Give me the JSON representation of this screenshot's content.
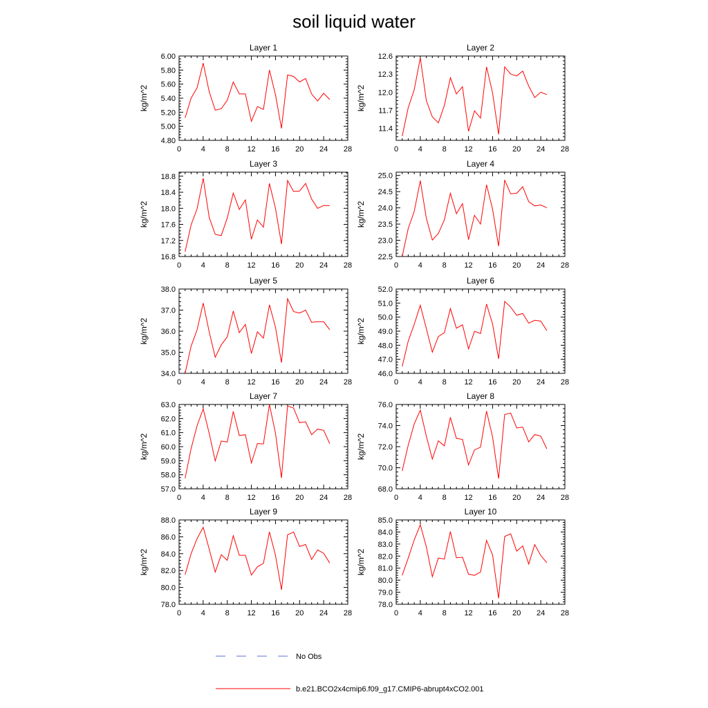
{
  "title": "soil liquid water",
  "legend": {
    "entries": [
      {
        "label": "No Obs",
        "color": "#5b6fd6",
        "dash": true
      },
      {
        "label": "b.e21.BCO2x4cmip6.f09_g17.CMIP6-abrupt4xCO2.001",
        "color": "#ff0000",
        "dash": false
      }
    ]
  },
  "colors": {
    "series": "#ff0000",
    "axis": "#000000"
  },
  "chart_data": [
    {
      "type": "line",
      "title": "Layer 1",
      "ylabel": "kg/m^2",
      "xlim": [
        0,
        28
      ],
      "ylim": [
        4.8,
        6.0
      ],
      "xticks": [
        0,
        4,
        8,
        12,
        16,
        20,
        24,
        28
      ],
      "xtick_labels": [
        "0",
        "4",
        "8",
        "12",
        "16",
        "20",
        "24",
        "28"
      ],
      "yticks": [
        4.8,
        5.0,
        5.2,
        5.4,
        5.6,
        5.8,
        6.0
      ],
      "ytick_labels": [
        "4.80",
        "5.00",
        "5.20",
        "5.40",
        "5.60",
        "5.80",
        "6.00"
      ],
      "x": [
        1,
        2,
        3,
        4,
        5,
        6,
        7,
        8,
        9,
        10,
        11,
        12,
        13,
        14,
        15,
        16,
        17,
        18,
        19,
        20,
        21,
        22,
        23,
        24,
        25
      ],
      "series": [
        {
          "values": [
            5.12,
            5.4,
            5.55,
            5.9,
            5.49,
            5.23,
            5.25,
            5.37,
            5.63,
            5.46,
            5.46,
            5.07,
            5.28,
            5.24,
            5.8,
            5.45,
            4.97,
            5.73,
            5.71,
            5.63,
            5.68,
            5.46,
            5.36,
            5.47,
            5.38
          ]
        }
      ]
    },
    {
      "type": "line",
      "title": "Layer 2",
      "ylabel": "kg/m^2",
      "xlim": [
        0,
        28
      ],
      "ylim": [
        11.2,
        12.6
      ],
      "xticks": [
        0,
        4,
        8,
        12,
        16,
        20,
        24,
        28
      ],
      "xtick_labels": [
        "0",
        "4",
        "8",
        "12",
        "16",
        "20",
        "24",
        "28"
      ],
      "yticks": [
        11.4,
        11.7,
        12.0,
        12.3,
        12.6
      ],
      "ytick_labels": [
        "11.4",
        "11.7",
        "12.0",
        "12.3",
        "12.6"
      ],
      "x": [
        1,
        2,
        3,
        4,
        5,
        6,
        7,
        8,
        9,
        10,
        11,
        12,
        13,
        14,
        15,
        16,
        17,
        18,
        19,
        20,
        21,
        22,
        23,
        24,
        25
      ],
      "series": [
        {
          "values": [
            11.27,
            11.74,
            12.04,
            12.57,
            11.86,
            11.59,
            11.49,
            11.78,
            12.24,
            11.97,
            12.09,
            11.35,
            11.69,
            11.57,
            12.42,
            11.99,
            11.3,
            12.42,
            12.3,
            12.27,
            12.35,
            12.1,
            11.91,
            12.0,
            11.96
          ]
        }
      ]
    },
    {
      "type": "line",
      "title": "Layer 3",
      "ylabel": "kg/m^2",
      "xlim": [
        0,
        28
      ],
      "ylim": [
        16.8,
        18.9
      ],
      "xticks": [
        0,
        4,
        8,
        12,
        16,
        20,
        24,
        28
      ],
      "xtick_labels": [
        "0",
        "4",
        "8",
        "12",
        "16",
        "20",
        "24",
        "28"
      ],
      "yticks": [
        16.8,
        17.2,
        17.6,
        18.0,
        18.4,
        18.8
      ],
      "ytick_labels": [
        "16.8",
        "17.2",
        "17.6",
        "18.0",
        "18.4",
        "18.8"
      ],
      "x": [
        1,
        2,
        3,
        4,
        5,
        6,
        7,
        8,
        9,
        10,
        11,
        12,
        13,
        14,
        15,
        16,
        17,
        18,
        19,
        20,
        21,
        22,
        23,
        24,
        25
      ],
      "series": [
        {
          "values": [
            16.92,
            17.59,
            17.99,
            18.75,
            17.77,
            17.35,
            17.32,
            17.76,
            18.38,
            17.97,
            18.21,
            17.23,
            17.71,
            17.53,
            18.62,
            18.0,
            17.11,
            18.69,
            18.42,
            18.43,
            18.62,
            18.23,
            18.0,
            18.07,
            18.07
          ]
        }
      ]
    },
    {
      "type": "line",
      "title": "Layer 4",
      "ylabel": "kg/m^2",
      "xlim": [
        0,
        28
      ],
      "ylim": [
        22.5,
        25.1
      ],
      "xticks": [
        0,
        4,
        8,
        12,
        16,
        20,
        24,
        28
      ],
      "xtick_labels": [
        "0",
        "4",
        "8",
        "12",
        "16",
        "20",
        "24",
        "28"
      ],
      "yticks": [
        22.5,
        23.0,
        23.5,
        24.0,
        24.5,
        25.0
      ],
      "ytick_labels": [
        "22.5",
        "23.0",
        "23.5",
        "24.0",
        "24.5",
        "25.0"
      ],
      "x": [
        1,
        2,
        3,
        4,
        5,
        6,
        7,
        8,
        9,
        10,
        11,
        12,
        13,
        14,
        15,
        16,
        17,
        18,
        19,
        20,
        21,
        22,
        23,
        24,
        25
      ],
      "series": [
        {
          "values": [
            22.5,
            23.36,
            23.89,
            24.84,
            23.68,
            23.01,
            23.21,
            23.63,
            24.45,
            23.82,
            24.13,
            23.02,
            23.77,
            23.5,
            24.71,
            23.96,
            22.82,
            24.86,
            24.43,
            24.45,
            24.65,
            24.19,
            24.06,
            24.09,
            24.0
          ]
        }
      ]
    },
    {
      "type": "line",
      "title": "Layer 5",
      "ylabel": "kg/m^2",
      "xlim": [
        0,
        28
      ],
      "ylim": [
        34.0,
        38.0
      ],
      "xticks": [
        0,
        4,
        8,
        12,
        16,
        20,
        24,
        28
      ],
      "xtick_labels": [
        "0",
        "4",
        "8",
        "12",
        "16",
        "20",
        "24",
        "28"
      ],
      "yticks": [
        34.0,
        35.0,
        36.0,
        37.0,
        38.0
      ],
      "ytick_labels": [
        "34.0",
        "35.0",
        "36.0",
        "37.0",
        "38.0"
      ],
      "x": [
        1,
        2,
        3,
        4,
        5,
        6,
        7,
        8,
        9,
        10,
        11,
        12,
        13,
        14,
        15,
        16,
        17,
        18,
        19,
        20,
        21,
        22,
        23,
        24,
        25
      ],
      "series": [
        {
          "values": [
            34.0,
            35.29,
            36.07,
            37.33,
            35.96,
            34.76,
            35.35,
            35.73,
            36.96,
            35.93,
            36.32,
            34.94,
            35.97,
            35.67,
            37.25,
            36.19,
            34.51,
            37.54,
            36.93,
            36.86,
            37.0,
            36.42,
            36.45,
            36.45,
            36.07
          ]
        }
      ]
    },
    {
      "type": "line",
      "title": "Layer 6",
      "ylabel": "kg/m^2",
      "xlim": [
        0,
        28
      ],
      "ylim": [
        46.0,
        52.0
      ],
      "xticks": [
        0,
        4,
        8,
        12,
        16,
        20,
        24,
        28
      ],
      "xtick_labels": [
        "0",
        "4",
        "8",
        "12",
        "16",
        "20",
        "24",
        "28"
      ],
      "yticks": [
        46.0,
        47.0,
        48.0,
        49.0,
        50.0,
        51.0,
        52.0
      ],
      "ytick_labels": [
        "46.0",
        "47.0",
        "48.0",
        "49.0",
        "50.0",
        "51.0",
        "52.0"
      ],
      "x": [
        1,
        2,
        3,
        4,
        5,
        6,
        7,
        8,
        9,
        10,
        11,
        12,
        13,
        14,
        15,
        16,
        17,
        18,
        19,
        20,
        21,
        22,
        23,
        24,
        25
      ],
      "series": [
        {
          "values": [
            46.49,
            48.29,
            49.49,
            50.84,
            49.19,
            47.51,
            48.62,
            48.89,
            50.61,
            49.21,
            49.45,
            47.74,
            48.99,
            48.83,
            50.93,
            49.52,
            47.03,
            51.12,
            50.71,
            50.13,
            50.26,
            49.57,
            49.77,
            49.72,
            49.04
          ]
        }
      ]
    },
    {
      "type": "line",
      "title": "Layer 7",
      "ylabel": "kg/m^2",
      "xlim": [
        0,
        28
      ],
      "ylim": [
        57.0,
        63.0
      ],
      "xticks": [
        0,
        4,
        8,
        12,
        16,
        20,
        24,
        28
      ],
      "xtick_labels": [
        "0",
        "4",
        "8",
        "12",
        "16",
        "20",
        "24",
        "28"
      ],
      "yticks": [
        57.0,
        58.0,
        59.0,
        60.0,
        61.0,
        62.0,
        63.0
      ],
      "ytick_labels": [
        "57.0",
        "58.0",
        "59.0",
        "60.0",
        "61.0",
        "62.0",
        "63.0"
      ],
      "x": [
        1,
        2,
        3,
        4,
        5,
        6,
        7,
        8,
        9,
        10,
        11,
        12,
        13,
        14,
        15,
        16,
        17,
        18,
        19,
        20,
        21,
        22,
        23,
        24,
        25
      ],
      "series": [
        {
          "values": [
            57.75,
            59.86,
            61.5,
            62.68,
            60.94,
            58.98,
            60.4,
            60.33,
            62.51,
            60.79,
            60.85,
            58.84,
            60.22,
            60.19,
            63.0,
            60.97,
            57.77,
            62.89,
            62.75,
            61.7,
            61.77,
            60.85,
            61.25,
            61.16,
            60.21
          ]
        }
      ]
    },
    {
      "type": "line",
      "title": "Layer 8",
      "ylabel": "kg/m^2",
      "xlim": [
        0,
        28
      ],
      "ylim": [
        68.0,
        76.0
      ],
      "xticks": [
        0,
        4,
        8,
        12,
        16,
        20,
        24,
        28
      ],
      "xtick_labels": [
        "0",
        "4",
        "8",
        "12",
        "16",
        "20",
        "24",
        "28"
      ],
      "yticks": [
        68.0,
        70.0,
        72.0,
        74.0,
        76.0
      ],
      "ytick_labels": [
        "68.0",
        "70.0",
        "72.0",
        "74.0",
        "76.0"
      ],
      "x": [
        1,
        2,
        3,
        4,
        5,
        6,
        7,
        8,
        9,
        10,
        11,
        12,
        13,
        14,
        15,
        16,
        17,
        18,
        19,
        20,
        21,
        22,
        23,
        24,
        25
      ],
      "series": [
        {
          "values": [
            69.7,
            72.13,
            74.15,
            75.46,
            73.01,
            70.82,
            72.55,
            72.07,
            74.78,
            72.79,
            72.69,
            70.26,
            71.7,
            71.95,
            75.37,
            72.93,
            68.97,
            75.05,
            75.19,
            73.77,
            73.85,
            72.45,
            73.15,
            73.0,
            71.8
          ]
        }
      ]
    },
    {
      "type": "line",
      "title": "Layer 9",
      "ylabel": "kg/m^2",
      "xlim": [
        0,
        28
      ],
      "ylim": [
        78.0,
        88.0
      ],
      "xticks": [
        0,
        4,
        8,
        12,
        16,
        20,
        24,
        28
      ],
      "xtick_labels": [
        "0",
        "4",
        "8",
        "12",
        "16",
        "20",
        "24",
        "28"
      ],
      "yticks": [
        78.0,
        80.0,
        82.0,
        84.0,
        86.0,
        88.0
      ],
      "ytick_labels": [
        "78.0",
        "80.0",
        "82.0",
        "84.0",
        "86.0",
        "88.0"
      ],
      "x": [
        1,
        2,
        3,
        4,
        5,
        6,
        7,
        8,
        9,
        10,
        11,
        12,
        13,
        14,
        15,
        16,
        17,
        18,
        19,
        20,
        21,
        22,
        23,
        24,
        25
      ],
      "series": [
        {
          "values": [
            81.52,
            84.0,
            85.8,
            87.12,
            84.54,
            81.82,
            83.88,
            83.21,
            86.13,
            83.81,
            83.81,
            81.46,
            82.44,
            82.85,
            86.58,
            83.81,
            79.73,
            86.23,
            86.57,
            84.85,
            85.09,
            83.31,
            84.44,
            84.05,
            82.89
          ]
        }
      ]
    },
    {
      "type": "line",
      "title": "Layer 10",
      "ylabel": "kg/m^2",
      "xlim": [
        0,
        28
      ],
      "ylim": [
        78.0,
        85.0
      ],
      "xticks": [
        0,
        4,
        8,
        12,
        16,
        20,
        24,
        28
      ],
      "xtick_labels": [
        "0",
        "4",
        "8",
        "12",
        "16",
        "20",
        "24",
        "28"
      ],
      "yticks": [
        78.0,
        79.0,
        80.0,
        81.0,
        82.0,
        83.0,
        84.0,
        85.0
      ],
      "ytick_labels": [
        "78.0",
        "79.0",
        "80.0",
        "81.0",
        "82.0",
        "83.0",
        "84.0",
        "85.0"
      ],
      "x": [
        1,
        2,
        3,
        4,
        5,
        6,
        7,
        8,
        9,
        10,
        11,
        12,
        13,
        14,
        15,
        16,
        17,
        18,
        19,
        20,
        21,
        22,
        23,
        24,
        25
      ],
      "series": [
        {
          "values": [
            80.4,
            81.83,
            83.34,
            84.6,
            82.78,
            80.29,
            81.84,
            81.75,
            84.04,
            81.86,
            81.91,
            80.5,
            80.4,
            80.68,
            83.3,
            82.1,
            78.5,
            83.63,
            83.85,
            82.41,
            82.84,
            81.34,
            82.96,
            82.05,
            81.45
          ]
        }
      ]
    }
  ]
}
